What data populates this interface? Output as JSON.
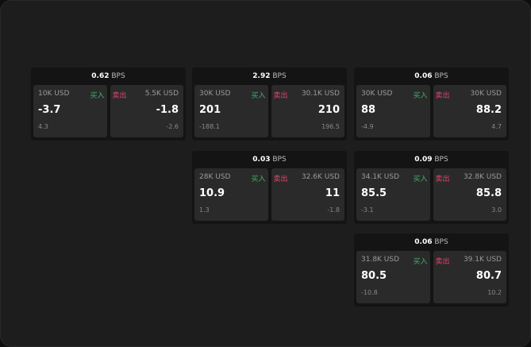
{
  "unit": "BPS",
  "buy_label": "买入",
  "sell_label": "卖出",
  "colors": {
    "buy": "#3fb068",
    "sell": "#e0456e",
    "background": "#1d1d1d",
    "panel": "#2a2a2a"
  },
  "tiles": [
    {
      "spread": "0.62",
      "buy": {
        "size": "10K USD",
        "price": "-3.7",
        "change": "4.3"
      },
      "sell": {
        "size": "5.5K USD",
        "price": "-1.8",
        "change": "-2.6"
      }
    },
    {
      "spread": "2.92",
      "buy": {
        "size": "30K USD",
        "price": "201",
        "change": "-188.1"
      },
      "sell": {
        "size": "30.1K USD",
        "price": "210",
        "change": "196.5"
      }
    },
    {
      "spread": "0.06",
      "buy": {
        "size": "30K USD",
        "price": "88",
        "change": "-4.9"
      },
      "sell": {
        "size": "30K USD",
        "price": "88.2",
        "change": "4.7"
      }
    },
    {
      "spread": "0.03",
      "buy": {
        "size": "28K USD",
        "price": "10.9",
        "change": "1.3"
      },
      "sell": {
        "size": "32.6K USD",
        "price": "11",
        "change": "-1.8"
      }
    },
    {
      "spread": "0.09",
      "buy": {
        "size": "34.1K USD",
        "price": "85.5",
        "change": "-3.1"
      },
      "sell": {
        "size": "32.8K USD",
        "price": "85.8",
        "change": "3.0"
      }
    },
    {
      "spread": "0.06",
      "buy": {
        "size": "31.8K USD",
        "price": "80.5",
        "change": "-10.8"
      },
      "sell": {
        "size": "39.1K USD",
        "price": "80.7",
        "change": "10.2"
      }
    }
  ]
}
